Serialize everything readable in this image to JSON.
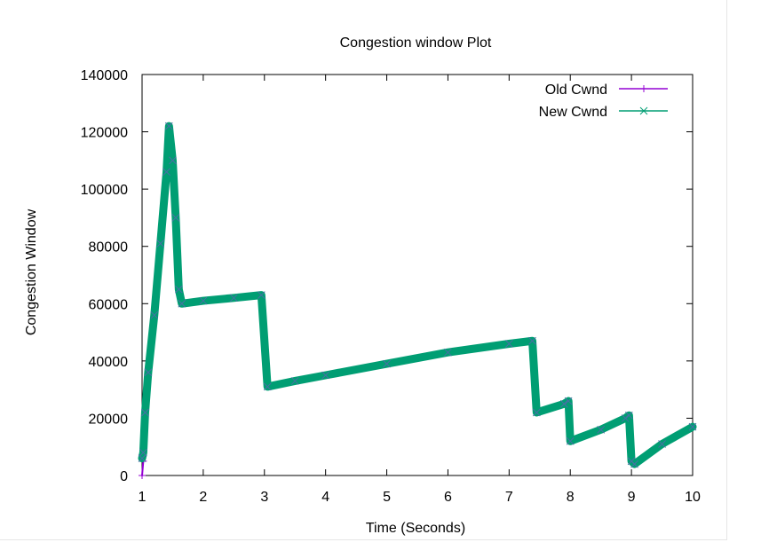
{
  "chart_data": {
    "type": "line",
    "title": "Congestion window Plot",
    "xlabel": "Time (Seconds)",
    "ylabel": "Congestion Window",
    "xlim": [
      1,
      10
    ],
    "ylim": [
      0,
      140000
    ],
    "xticks": [
      1,
      2,
      3,
      4,
      5,
      6,
      7,
      8,
      9,
      10
    ],
    "yticks": [
      0,
      20000,
      40000,
      60000,
      80000,
      100000,
      120000,
      140000
    ],
    "grid": false,
    "legend_position": "top-right",
    "series": [
      {
        "name": "Old Cwnd",
        "color": "#9400d3",
        "marker": "plus",
        "x": [
          1.0,
          1.02,
          1.05,
          1.1,
          1.2,
          1.3,
          1.4,
          1.44,
          1.5,
          1.55,
          1.6,
          1.65,
          2.0,
          2.5,
          2.95,
          3.05,
          3.5,
          4.0,
          5.0,
          6.0,
          7.0,
          7.38,
          7.45,
          7.9,
          7.97,
          8.0,
          8.5,
          8.9,
          8.96,
          9.0,
          9.05,
          9.5,
          10.0
        ],
        "y": [
          0,
          5000,
          20000,
          35000,
          55000,
          80000,
          105000,
          122000,
          110000,
          90000,
          65000,
          60000,
          61000,
          62000,
          63000,
          31000,
          33000,
          35000,
          39000,
          43000,
          46000,
          47000,
          22000,
          25000,
          26000,
          12000,
          16000,
          20000,
          21000,
          5000,
          4000,
          11000,
          17000
        ]
      },
      {
        "name": "New Cwnd",
        "color": "#009e73",
        "marker": "x",
        "x": [
          1.0,
          1.02,
          1.05,
          1.1,
          1.2,
          1.3,
          1.4,
          1.44,
          1.5,
          1.55,
          1.6,
          1.65,
          2.0,
          2.5,
          2.95,
          3.05,
          3.5,
          4.0,
          5.0,
          6.0,
          7.0,
          7.38,
          7.45,
          7.9,
          7.97,
          8.0,
          8.5,
          8.9,
          8.96,
          9.0,
          9.05,
          9.5,
          10.0
        ],
        "y": [
          6000,
          8000,
          22000,
          36000,
          56000,
          81000,
          106000,
          122000,
          110000,
          90000,
          65000,
          60000,
          61000,
          62000,
          63000,
          31000,
          33000,
          35000,
          39000,
          43000,
          46000,
          47000,
          22000,
          25000,
          26000,
          12000,
          16000,
          20000,
          21000,
          5000,
          4000,
          11000,
          17000
        ]
      }
    ]
  }
}
